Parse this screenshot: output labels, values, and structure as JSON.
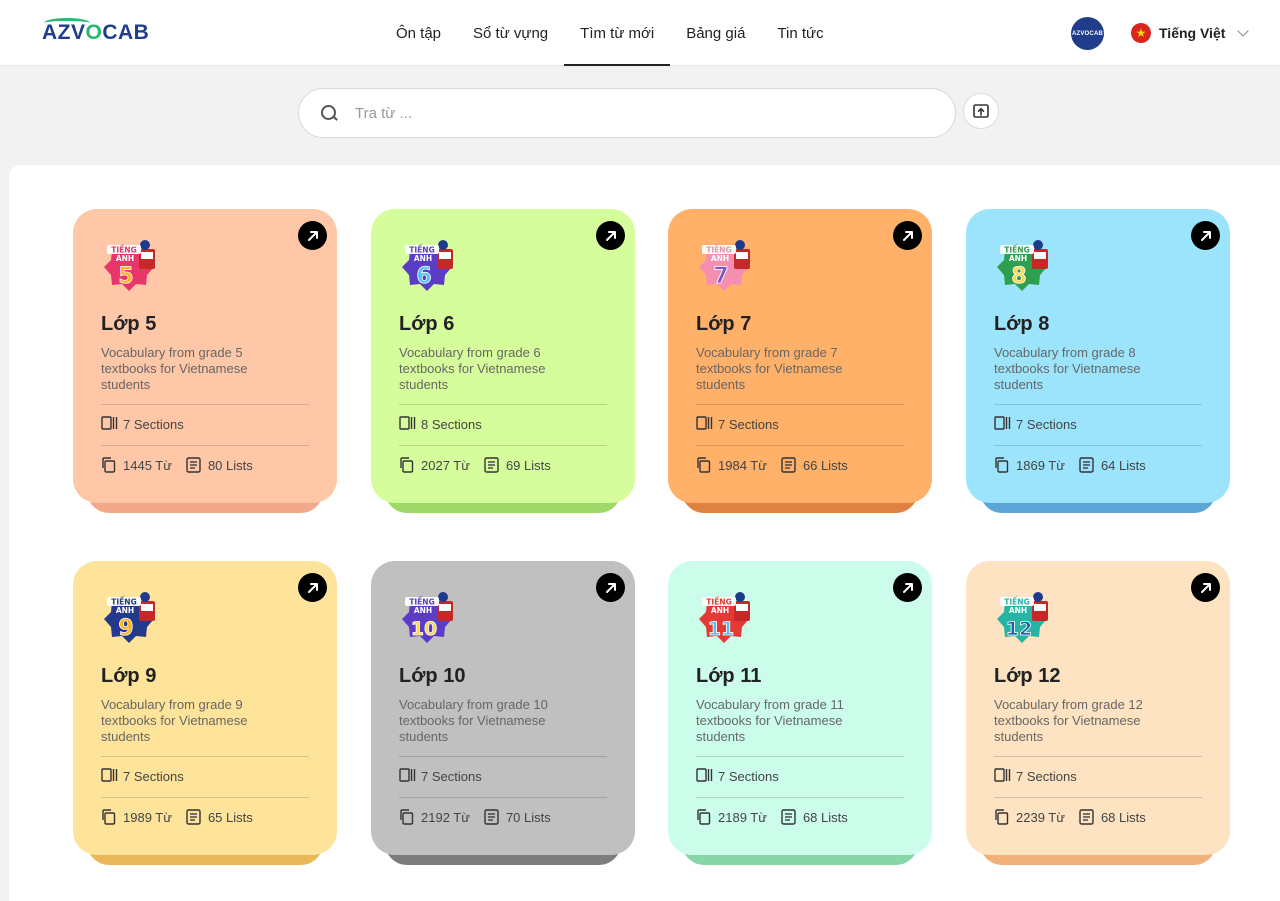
{
  "header": {
    "logo": {
      "prefix": "AZV",
      "o": "O",
      "suffix": "CAB"
    },
    "nav": [
      "Ôn tập",
      "Sổ từ vựng",
      "Tìm từ mới",
      "Bảng giá",
      "Tin tức"
    ],
    "active_nav": "Tìm từ mới",
    "avatar_text": "AZVOCAB",
    "language": "Tiếng Việt"
  },
  "search": {
    "placeholder": "Tra từ ..."
  },
  "cards": [
    {
      "title": "Lớp 5",
      "grade": "5",
      "desc": "Vocabulary from grade 5 textbooks for Vietnamese students",
      "sections": "7 Sections",
      "words": "1445 Từ",
      "lists": "80 Lists",
      "color": "#fec7a8",
      "shadow": "#f2a98a",
      "badge_color": "#e8356a",
      "digit_color": "#ffb21f"
    },
    {
      "title": "Lớp 6",
      "grade": "6",
      "desc": "Vocabulary from grade 6 textbooks for Vietnamese students",
      "sections": "8 Sections",
      "words": "2027 Từ",
      "lists": "69 Lists",
      "color": "#d6fd9b",
      "shadow": "#9ed866",
      "badge_color": "#5b3cc4",
      "digit_color": "#4fc3f7"
    },
    {
      "title": "Lớp 7",
      "grade": "7",
      "desc": "Vocabulary from grade 7 textbooks for Vietnamese students",
      "sections": "7 Sections",
      "words": "1984 Từ",
      "lists": "66 Lists",
      "color": "#ffb16a",
      "shadow": "#dd8240",
      "badge_color": "#f48fb1",
      "digit_color": "#7e57c2"
    },
    {
      "title": "Lớp 8",
      "grade": "8",
      "desc": "Vocabulary from grade 8 textbooks for Vietnamese students",
      "sections": "7 Sections",
      "words": "1869 Từ",
      "lists": "64 Lists",
      "color": "#9be4fc",
      "shadow": "#5aa6d6",
      "badge_color": "#2e9e4f",
      "digit_color": "#ffd54f"
    },
    {
      "title": "Lớp 9",
      "grade": "9",
      "desc": "Vocabulary from grade 9 textbooks for Vietnamese students",
      "sections": "7 Sections",
      "words": "1989 Từ",
      "lists": "65 Lists",
      "color": "#fee39a",
      "shadow": "#e8b85a",
      "badge_color": "#233a8c",
      "digit_color": "#ffb21f"
    },
    {
      "title": "Lớp 10",
      "grade": "10",
      "desc": "Vocabulary from grade 10 textbooks for Vietnamese students",
      "sections": "7 Sections",
      "words": "2192 Từ",
      "lists": "70 Lists",
      "color": "#c0c0c0",
      "shadow": "#7d7d7d",
      "badge_color": "#5b3cc4",
      "digit_color": "#ffd54f"
    },
    {
      "title": "Lớp 11",
      "grade": "11",
      "desc": "Vocabulary from grade 11 textbooks for Vietnamese students",
      "sections": "7 Sections",
      "words": "2189 Từ",
      "lists": "68 Lists",
      "color": "#ccfdea",
      "shadow": "#86d6a8",
      "badge_color": "#e53935",
      "digit_color": "#4fc3f7"
    },
    {
      "title": "Lớp 12",
      "grade": "12",
      "desc": "Vocabulary from grade 12 textbooks for Vietnamese students",
      "sections": "7 Sections",
      "words": "2239 Từ",
      "lists": "68 Lists",
      "color": "#fde3c1",
      "shadow": "#efb07a",
      "badge_color": "#26b5a5",
      "digit_color": "#1f5fa8"
    }
  ]
}
